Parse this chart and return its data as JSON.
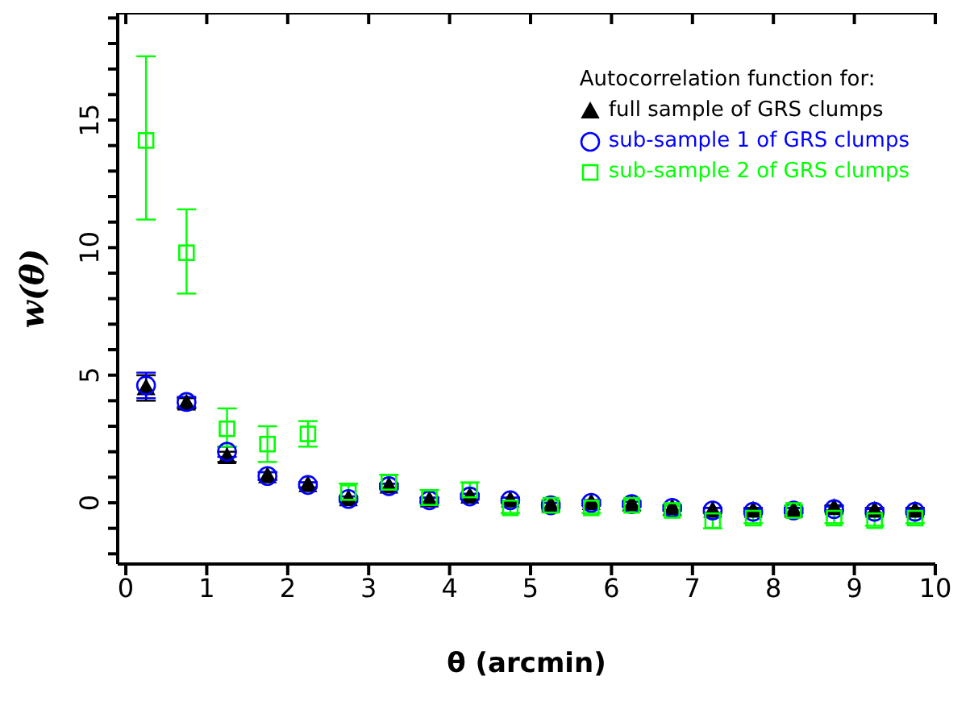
{
  "chart_data": {
    "type": "scatter",
    "xlabel": "θ (arcmin)",
    "ylabel": "w(θ)",
    "legend_title": "Autocorrelation function for:",
    "legend": "top right",
    "grid": false,
    "x": [
      0.25,
      0.75,
      1.25,
      1.75,
      2.25,
      2.75,
      3.25,
      3.75,
      4.25,
      4.75,
      5.25,
      5.75,
      6.25,
      6.75,
      7.25,
      7.75,
      8.25,
      8.75,
      9.25,
      9.75
    ],
    "xlim": [
      -0.1,
      10
    ],
    "xticks": [
      0,
      1,
      2,
      3,
      4,
      5,
      6,
      7,
      8,
      9,
      10
    ],
    "ylim": [
      -2.4,
      19.2
    ],
    "yticks": [
      {
        "value": -2,
        "label": null
      },
      {
        "value": -1,
        "label": null
      },
      0,
      {
        "value": 1,
        "label": null
      },
      {
        "value": 2,
        "label": null
      },
      {
        "value": 3,
        "label": null
      },
      {
        "value": 4,
        "label": null
      },
      5,
      {
        "value": 6,
        "label": null
      },
      {
        "value": 7,
        "label": null
      },
      {
        "value": 8,
        "label": null
      },
      {
        "value": 9,
        "label": null
      },
      10,
      {
        "value": 11,
        "label": null
      },
      {
        "value": 12,
        "label": null
      },
      {
        "value": 13,
        "label": null
      },
      {
        "value": 14,
        "label": null
      },
      15,
      {
        "value": 16,
        "label": null
      },
      {
        "value": 17,
        "label": null
      },
      {
        "value": 18,
        "label": null
      },
      {
        "value": 19,
        "label": null
      }
    ],
    "series": [
      {
        "name": "full sample of GRS clumps",
        "color": "#000000",
        "marker": "triangle",
        "values": [
          4.5,
          3.9,
          1.8,
          1.05,
          0.7,
          0.15,
          0.65,
          0.1,
          0.25,
          0.1,
          -0.1,
          0.0,
          -0.05,
          -0.2,
          -0.3,
          -0.3,
          -0.3,
          -0.2,
          -0.3,
          -0.3
        ],
        "errors": [
          0.5,
          0.2,
          0.2,
          0.15,
          0.1,
          0.1,
          0.1,
          0.1,
          0.1,
          0.1,
          0.1,
          0.1,
          0.1,
          0.1,
          0.1,
          0.1,
          0.1,
          0.1,
          0.1,
          0.1
        ]
      },
      {
        "name": "sub-sample 1 of GRS clumps",
        "color": "#0000ff",
        "marker": "circle",
        "values": [
          4.6,
          3.95,
          2.0,
          1.05,
          0.7,
          0.15,
          0.65,
          0.1,
          0.25,
          0.1,
          -0.1,
          0.0,
          -0.05,
          -0.2,
          -0.3,
          -0.35,
          -0.3,
          -0.25,
          -0.35,
          -0.35
        ],
        "errors": [
          0.5,
          0.2,
          0.2,
          0.15,
          0.1,
          0.1,
          0.1,
          0.1,
          0.1,
          0.1,
          0.1,
          0.1,
          0.1,
          0.1,
          0.1,
          0.1,
          0.1,
          0.1,
          0.1,
          0.1
        ]
      },
      {
        "name": "sub-sample 2 of GRS clumps",
        "color": "#00ff00",
        "marker": "square",
        "values": [
          14.2,
          9.8,
          2.9,
          2.3,
          2.7,
          0.4,
          0.8,
          0.2,
          0.5,
          -0.2,
          -0.1,
          -0.2,
          -0.1,
          -0.3,
          -0.7,
          -0.6,
          -0.3,
          -0.6,
          -0.7,
          -0.6
        ],
        "errors": [
          [
            11.1,
            17.5
          ],
          [
            8.2,
            11.5
          ],
          [
            2.2,
            3.7
          ],
          [
            1.6,
            3.0
          ],
          [
            2.2,
            3.2
          ],
          0.35,
          0.3,
          0.3,
          0.3,
          0.2,
          0.2,
          0.2,
          0.2,
          0.2,
          0.3,
          0.2,
          0.2,
          0.2,
          0.2,
          0.2
        ]
      }
    ]
  }
}
